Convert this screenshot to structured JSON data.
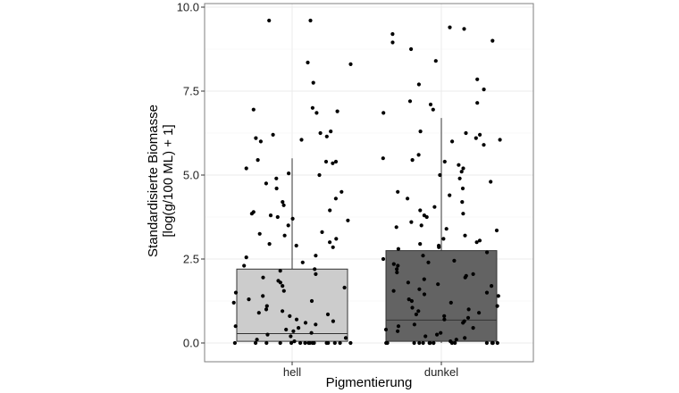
{
  "chart_data": {
    "type": "box",
    "xlabel": "Pigmentierung",
    "ylabel_lines": [
      "Standardisierte Biomasse",
      "[log(g/100 ML) + 1]"
    ],
    "ylim": [
      0,
      10
    ],
    "yticks": [
      0,
      2.5,
      5,
      7.5,
      10
    ],
    "ytick_labels": [
      "0.0",
      "2.5",
      "5.0",
      "7.5",
      "10.0"
    ],
    "grid": true,
    "categories": [
      "hell",
      "dunkel"
    ],
    "boxes": [
      {
        "name": "hell",
        "fill": "#cccccc",
        "min": 0.0,
        "q1": 0.05,
        "median": 0.28,
        "q3": 2.2,
        "whisker_high": 5.5,
        "points": [
          9.6,
          9.6,
          8.35,
          8.3,
          7.75,
          7.0,
          6.95,
          6.9,
          6.85,
          6.3,
          6.25,
          6.2,
          6.15,
          6.1,
          6.05,
          6.0,
          5.45,
          5.4,
          5.4,
          5.35,
          5.2,
          5.05,
          5.0,
          4.9,
          4.75,
          4.6,
          4.5,
          4.3,
          4.2,
          4.1,
          3.95,
          3.9,
          3.85,
          3.8,
          3.75,
          3.7,
          3.65,
          3.5,
          3.3,
          3.25,
          3.2,
          3.1,
          3.0,
          2.95,
          2.9,
          2.85,
          2.6,
          2.55,
          2.4,
          2.3,
          2.2,
          2.15,
          2.05,
          1.95,
          1.85,
          1.8,
          1.7,
          1.65,
          1.55,
          1.5,
          1.4,
          1.3,
          1.25,
          1.2,
          1.1,
          1.0,
          0.95,
          0.9,
          0.85,
          0.8,
          0.7,
          0.65,
          0.6,
          0.55,
          0.5,
          0.45,
          0.4,
          0.35,
          0.3,
          0.25,
          0.2,
          0.15,
          0.1,
          0.05,
          0.0,
          0.0,
          0.0,
          0.0,
          0.0,
          0.0,
          0.0,
          0.0,
          0.0,
          0.0,
          0.0,
          0.0,
          0.0,
          0.0,
          0.0,
          0.0
        ]
      },
      {
        "name": "dunkel",
        "fill": "#636363",
        "min": 0.0,
        "q1": 0.05,
        "median": 0.68,
        "q3": 2.75,
        "whisker_high": 6.7,
        "points": [
          9.4,
          9.35,
          9.2,
          9.0,
          8.95,
          8.75,
          8.4,
          7.85,
          7.7,
          7.55,
          7.2,
          7.15,
          7.1,
          6.95,
          6.85,
          6.3,
          6.25,
          6.2,
          6.1,
          6.05,
          6.0,
          5.9,
          5.6,
          5.5,
          5.45,
          5.4,
          5.3,
          5.2,
          5.1,
          5.0,
          4.9,
          4.8,
          4.6,
          4.5,
          4.4,
          4.3,
          4.2,
          4.05,
          3.95,
          3.85,
          3.8,
          3.75,
          3.6,
          3.5,
          3.45,
          3.4,
          3.35,
          3.2,
          3.1,
          3.05,
          3.0,
          2.95,
          2.9,
          2.85,
          2.8,
          2.7,
          2.6,
          2.5,
          2.45,
          2.4,
          2.35,
          2.3,
          2.2,
          2.1,
          2.05,
          2.0,
          1.95,
          1.9,
          1.8,
          1.75,
          1.7,
          1.6,
          1.55,
          1.5,
          1.45,
          1.4,
          1.3,
          1.25,
          1.2,
          1.1,
          1.05,
          1.0,
          0.95,
          0.9,
          0.85,
          0.8,
          0.75,
          0.7,
          0.65,
          0.6,
          0.55,
          0.5,
          0.45,
          0.4,
          0.35,
          0.3,
          0.25,
          0.2,
          0.15,
          0.1,
          0.05,
          0.0,
          0.0,
          0.0,
          0.0,
          0.0,
          0.0,
          0.0,
          0.0,
          0.0,
          0.0,
          0.0,
          0.0,
          0.0,
          0.0,
          0.0,
          0.0,
          0.0
        ]
      }
    ],
    "colors": {
      "panel_border": "#7f7f7f",
      "grid": "#ebebeb",
      "points": "#000000",
      "box_line": "#333333"
    }
  }
}
